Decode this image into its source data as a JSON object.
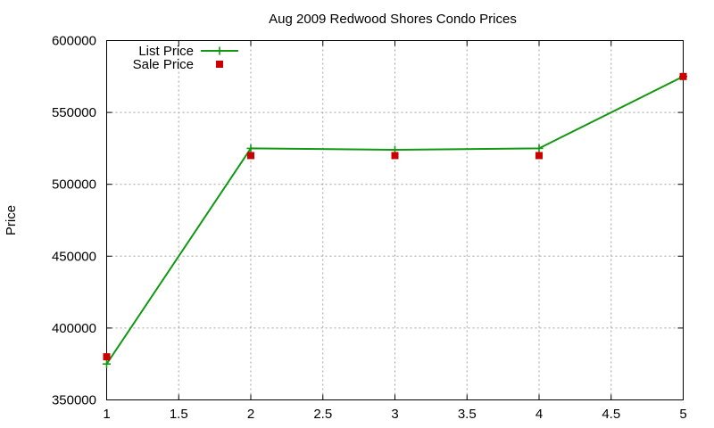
{
  "chart_data": {
    "type": "line",
    "title": "Aug 2009 Redwood Shores Condo Prices",
    "xlabel": "",
    "ylabel": "Price",
    "xlim": [
      1,
      5
    ],
    "ylim": [
      350000,
      600000
    ],
    "xticks": [
      1,
      1.5,
      2,
      2.5,
      3,
      3.5,
      4,
      4.5,
      5
    ],
    "xtick_labels": [
      "1",
      "1.5",
      "2",
      "2.5",
      "3",
      "3.5",
      "4",
      "4.5",
      "5"
    ],
    "yticks": [
      350000,
      400000,
      450000,
      500000,
      550000,
      600000
    ],
    "ytick_labels": [
      "350000",
      "400000",
      "450000",
      "500000",
      "550000",
      "600000"
    ],
    "grid": true,
    "legend_position": "top-left",
    "series": [
      {
        "name": "List Price",
        "style": "line-with-plus-markers",
        "color": "#129812",
        "x": [
          1,
          2,
          3,
          4,
          5
        ],
        "values": [
          375000,
          525000,
          524000,
          525000,
          575000
        ]
      },
      {
        "name": "Sale Price",
        "style": "square-markers",
        "color": "#cc0000",
        "x": [
          1,
          2,
          3,
          4,
          5
        ],
        "values": [
          380000,
          520000,
          520000,
          520000,
          575000
        ]
      }
    ]
  }
}
